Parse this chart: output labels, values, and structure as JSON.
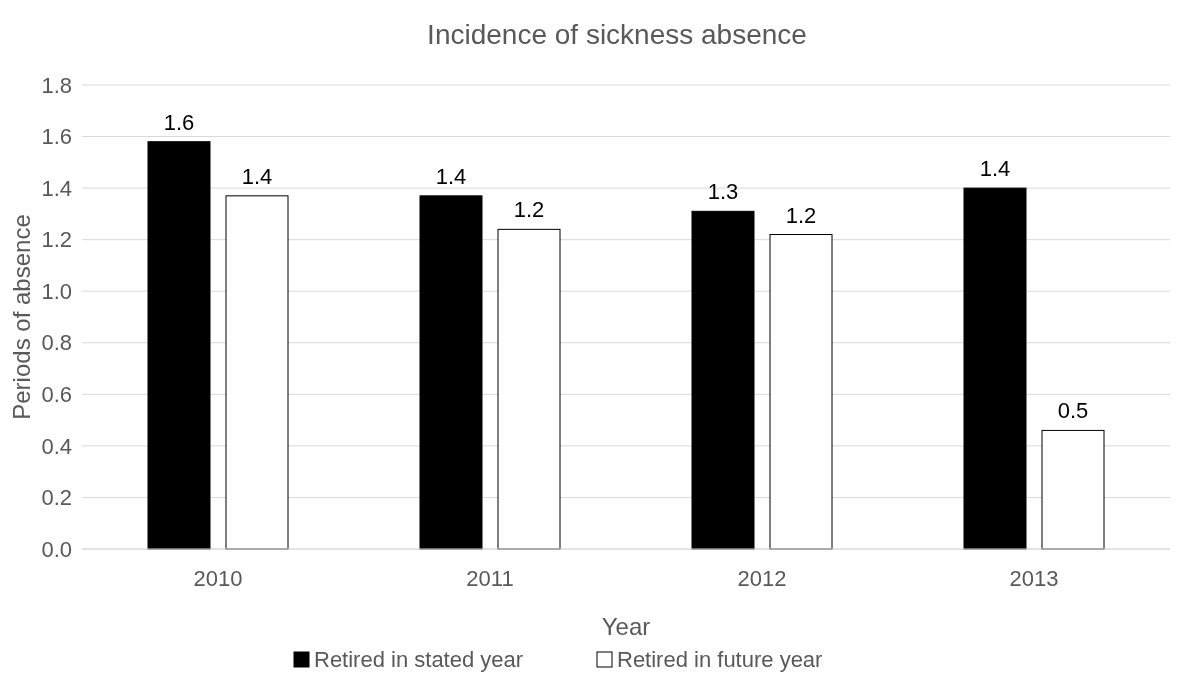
{
  "chart_data": {
    "type": "bar",
    "title": "Incidence of sickness absence",
    "xlabel": "Year",
    "ylabel": "Periods of absence",
    "categories": [
      "2010",
      "2011",
      "2012",
      "2013"
    ],
    "series": [
      {
        "name": "Retired in stated year",
        "color": "#000000",
        "values": [
          1.58,
          1.37,
          1.31,
          1.4
        ],
        "value_labels": [
          "1.6",
          "1.4",
          "1.3",
          "1.4"
        ]
      },
      {
        "name": "Retired in future year",
        "color": "#ffffff",
        "values": [
          1.37,
          1.24,
          1.22,
          0.46
        ],
        "value_labels": [
          "1.4",
          "1.2",
          "1.2",
          "0.5"
        ]
      }
    ],
    "ylim": [
      0,
      1.8
    ],
    "yticks": [
      {
        "value": 0,
        "label": "0.0"
      },
      {
        "value": 0.2,
        "label": "0.2"
      },
      {
        "value": 0.4,
        "label": "0.4"
      },
      {
        "value": 0.6,
        "label": "0.6"
      },
      {
        "value": 0.8,
        "label": "0.8"
      },
      {
        "value": 1,
        "label": "1.0"
      },
      {
        "value": 1.2,
        "label": "1.2"
      },
      {
        "value": 1.4,
        "label": "1.4"
      },
      {
        "value": 1.6,
        "label": "1.6"
      },
      {
        "value": 1.8,
        "label": "1.8"
      }
    ],
    "grid": "y",
    "legend": "bottom"
  }
}
